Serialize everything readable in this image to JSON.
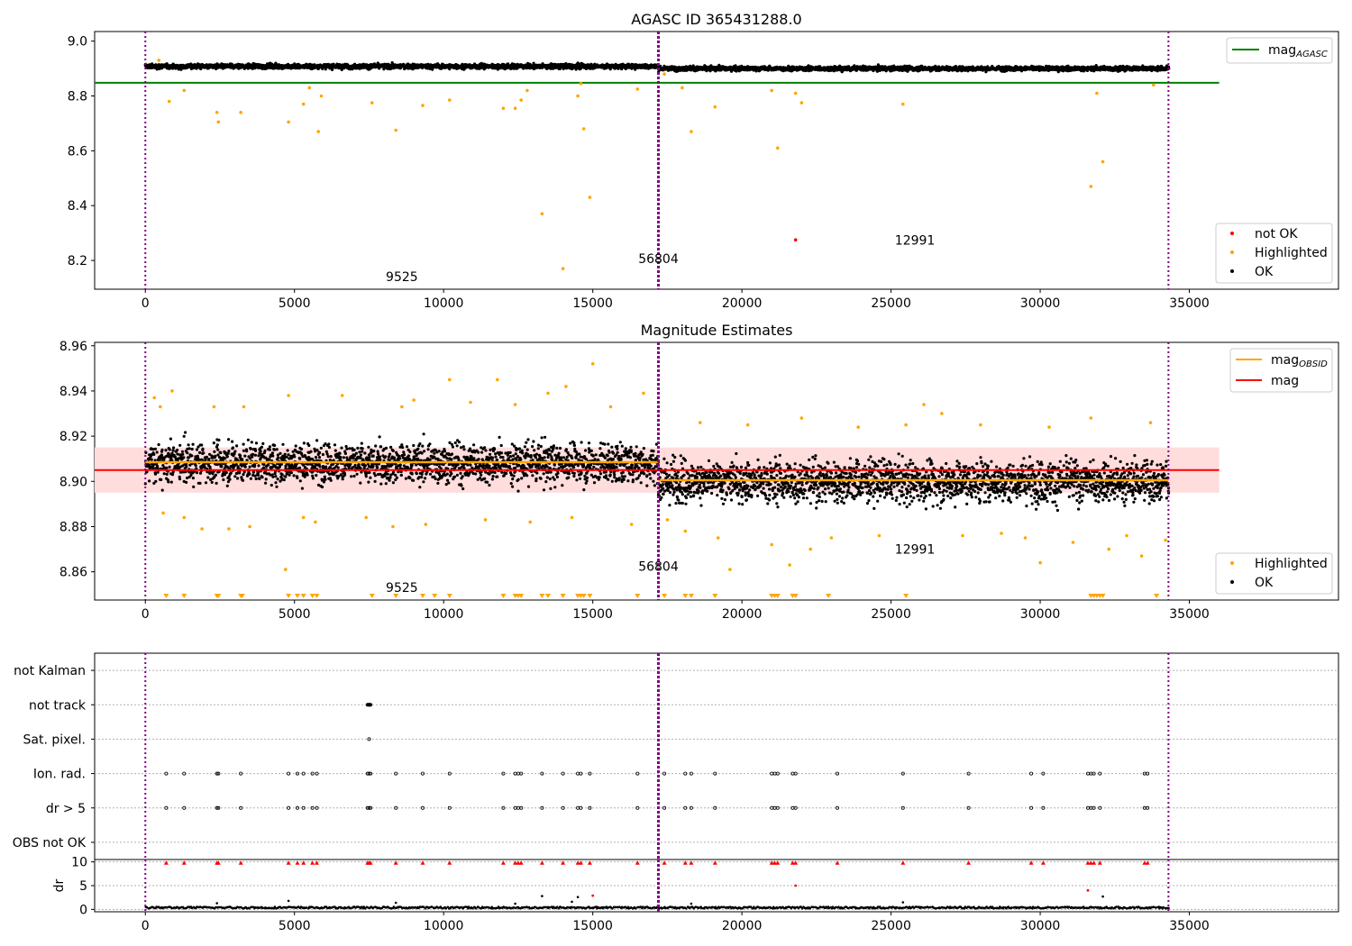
{
  "chart_data": [
    {
      "type": "scatter",
      "title": "AGASC ID 365431288.0",
      "xlim": [
        -1700,
        40000
      ],
      "ylim": [
        8.095,
        9.035
      ],
      "xticks": [
        0,
        5000,
        10000,
        15000,
        20000,
        25000,
        30000,
        35000
      ],
      "yticks": [
        8.2,
        8.4,
        8.6,
        8.8,
        9.0
      ],
      "ytick_labels": [
        "8.2",
        "8.4",
        "8.6",
        "8.8",
        "9.0"
      ],
      "legend_upper": {
        "position": "upper right",
        "entries": [
          {
            "label": "mag",
            "sub": "AGASC",
            "color": "#008000"
          }
        ]
      },
      "legend_lower": {
        "position": "lower right",
        "entries": [
          {
            "label": "not OK",
            "color": "#ff0000"
          },
          {
            "label": "Highlighted",
            "color": "#ffa500"
          },
          {
            "label": "OK",
            "color": "#000000"
          }
        ]
      },
      "series": [
        {
          "name": "OK",
          "color": "#000000",
          "segments": [
            {
              "x0": 0,
              "x1": 17200,
              "center": 8.908,
              "spread": 0.018
            },
            {
              "x0": 17200,
              "x1": 34300,
              "center": 8.9,
              "spread": 0.017
            }
          ]
        },
        {
          "name": "Highlighted",
          "color": "#ffa500",
          "points": [
            [
              450,
              8.93
            ],
            [
              800,
              8.78
            ],
            [
              1300,
              8.82
            ],
            [
              2400,
              8.74
            ],
            [
              2450,
              8.705
            ],
            [
              3200,
              8.74
            ],
            [
              4800,
              8.705
            ],
            [
              5300,
              8.77
            ],
            [
              5500,
              8.83
            ],
            [
              5800,
              8.67
            ],
            [
              5900,
              8.8
            ],
            [
              7600,
              8.775
            ],
            [
              8400,
              8.675
            ],
            [
              9300,
              8.765
            ],
            [
              10200,
              8.785
            ],
            [
              12000,
              8.755
            ],
            [
              12400,
              8.755
            ],
            [
              12600,
              8.785
            ],
            [
              12800,
              8.82
            ],
            [
              13300,
              8.37
            ],
            [
              14000,
              8.17
            ],
            [
              14500,
              8.8
            ],
            [
              14600,
              8.845
            ],
            [
              14700,
              8.68
            ],
            [
              14900,
              8.43
            ],
            [
              16500,
              8.825
            ],
            [
              17400,
              8.88
            ],
            [
              18000,
              8.83
            ],
            [
              18300,
              8.67
            ],
            [
              19100,
              8.76
            ],
            [
              21000,
              8.82
            ],
            [
              21200,
              8.61
            ],
            [
              21800,
              8.81
            ],
            [
              22000,
              8.775
            ],
            [
              25400,
              8.77
            ],
            [
              31700,
              8.47
            ],
            [
              31900,
              8.81
            ],
            [
              32100,
              8.56
            ],
            [
              33800,
              8.84
            ]
          ]
        },
        {
          "name": "not OK",
          "color": "#ff0000",
          "points": [
            [
              21800,
              8.275
            ]
          ]
        }
      ],
      "hlines": [
        {
          "name": "mag_AGASC",
          "y": 8.848,
          "color": "#008000",
          "x0": -1700,
          "x1": 36000
        }
      ],
      "vlines": [
        {
          "x": 0,
          "style": "dotted",
          "color": "#800080"
        },
        {
          "x": 17200,
          "style": "dashed-thick",
          "color": "#800080"
        },
        {
          "x": 34300,
          "style": "dotted",
          "color": "#800080"
        }
      ],
      "annotations": [
        {
          "text": "9525",
          "x": 8600,
          "y": 8.125
        },
        {
          "text": "56804",
          "x": 17200,
          "y": 8.19
        },
        {
          "text": "12991",
          "x": 25800,
          "y": 8.258
        }
      ]
    },
    {
      "type": "scatter",
      "title": "Magnitude Estimates",
      "xlim": [
        -1700,
        40000
      ],
      "ylim": [
        8.8475,
        8.9615
      ],
      "xticks": [
        0,
        5000,
        10000,
        15000,
        20000,
        25000,
        30000,
        35000
      ],
      "yticks": [
        8.86,
        8.88,
        8.9,
        8.92,
        8.94,
        8.96
      ],
      "ytick_labels": [
        "8.86",
        "8.88",
        "8.90",
        "8.92",
        "8.94",
        "8.96"
      ],
      "legend_upper": {
        "position": "upper right",
        "entries": [
          {
            "label": "mag",
            "sub": "OBSID",
            "color": "#ffa500"
          },
          {
            "label": "mag",
            "sub": "",
            "color": "#ff0000"
          }
        ]
      },
      "legend_lower": {
        "position": "lower right",
        "entries": [
          {
            "label": "Highlighted",
            "color": "#ffa500"
          },
          {
            "label": "OK",
            "color": "#000000"
          }
        ]
      },
      "band": {
        "y0": 8.895,
        "y1": 8.915,
        "color": "#ffdddd",
        "x0": -1700,
        "x1": 36000
      },
      "hlines": [
        {
          "name": "mag",
          "y": 8.905,
          "color": "#ff0000",
          "x0": -1700,
          "x1": 36000
        }
      ],
      "obsid_lines": [
        {
          "x0": 0,
          "x1": 17200,
          "y": 8.9085,
          "color": "#ffa500"
        },
        {
          "x0": 17200,
          "x1": 34300,
          "y": 8.9005,
          "color": "#ffa500"
        }
      ],
      "series": [
        {
          "name": "OK",
          "color": "#000000",
          "segments": [
            {
              "x0": 0,
              "x1": 17200,
              "center": 8.908,
              "spread": 0.015
            },
            {
              "x0": 17200,
              "x1": 34300,
              "center": 8.9,
              "spread": 0.016
            }
          ]
        },
        {
          "name": "Highlighted",
          "color": "#ffa500",
          "points": [
            [
              300,
              8.937
            ],
            [
              500,
              8.933
            ],
            [
              600,
              8.886
            ],
            [
              900,
              8.94
            ],
            [
              1300,
              8.884
            ],
            [
              1900,
              8.879
            ],
            [
              2300,
              8.933
            ],
            [
              2800,
              8.879
            ],
            [
              3300,
              8.933
            ],
            [
              3500,
              8.88
            ],
            [
              4700,
              8.861
            ],
            [
              4800,
              8.938
            ],
            [
              5300,
              8.884
            ],
            [
              5700,
              8.882
            ],
            [
              6600,
              8.938
            ],
            [
              7400,
              8.884
            ],
            [
              8300,
              8.88
            ],
            [
              8600,
              8.933
            ],
            [
              9000,
              8.936
            ],
            [
              9400,
              8.881
            ],
            [
              10200,
              8.945
            ],
            [
              10900,
              8.935
            ],
            [
              11400,
              8.883
            ],
            [
              11800,
              8.945
            ],
            [
              12400,
              8.934
            ],
            [
              12900,
              8.882
            ],
            [
              13500,
              8.939
            ],
            [
              14100,
              8.942
            ],
            [
              14300,
              8.884
            ],
            [
              15000,
              8.952
            ],
            [
              15600,
              8.933
            ],
            [
              16300,
              8.881
            ],
            [
              16700,
              8.939
            ],
            [
              17500,
              8.883
            ],
            [
              18100,
              8.878
            ],
            [
              18600,
              8.926
            ],
            [
              19200,
              8.875
            ],
            [
              19600,
              8.861
            ],
            [
              20200,
              8.925
            ],
            [
              21000,
              8.872
            ],
            [
              21600,
              8.863
            ],
            [
              22000,
              8.928
            ],
            [
              22300,
              8.87
            ],
            [
              23000,
              8.875
            ],
            [
              23900,
              8.924
            ],
            [
              24600,
              8.876
            ],
            [
              25500,
              8.925
            ],
            [
              26100,
              8.934
            ],
            [
              26700,
              8.93
            ],
            [
              27400,
              8.876
            ],
            [
              28000,
              8.925
            ],
            [
              28700,
              8.877
            ],
            [
              29500,
              8.875
            ],
            [
              30000,
              8.864
            ],
            [
              30300,
              8.924
            ],
            [
              31100,
              8.873
            ],
            [
              31700,
              8.928
            ],
            [
              32300,
              8.87
            ],
            [
              32900,
              8.876
            ],
            [
              33400,
              8.867
            ],
            [
              33700,
              8.926
            ],
            [
              34200,
              8.874
            ]
          ]
        }
      ],
      "clipped_markers_x": [
        700,
        1300,
        2400,
        2450,
        3200,
        3250,
        4800,
        5100,
        5300,
        5600,
        5750,
        7600,
        8400,
        9300,
        9700,
        10200,
        12000,
        12400,
        12500,
        12600,
        13300,
        13500,
        14000,
        14500,
        14600,
        14700,
        14900,
        16500,
        17400,
        18100,
        18300,
        19100,
        21000,
        21100,
        21200,
        21700,
        21800,
        22900,
        25500,
        31700,
        31800,
        31900,
        32000,
        32100,
        33900
      ],
      "vlines": [
        {
          "x": 0,
          "style": "dotted",
          "color": "#800080"
        },
        {
          "x": 17200,
          "style": "dashed-thick",
          "color": "#800080"
        },
        {
          "x": 34300,
          "style": "dotted",
          "color": "#800080"
        }
      ],
      "annotations": [
        {
          "text": "9525",
          "x": 8600,
          "y": 8.851
        },
        {
          "text": "56804",
          "x": 17200,
          "y": 8.8605
        },
        {
          "text": "12991",
          "x": 25800,
          "y": 8.868
        }
      ]
    },
    {
      "type": "scatter",
      "title": "",
      "xlim": [
        -1700,
        40000
      ],
      "categories": [
        "OBS not OK",
        "dr > 5",
        "Ion. rad.",
        "Sat. pixel.",
        "not track",
        "not Kalman"
      ],
      "ylim": [
        -0.5,
        5.5
      ],
      "flag_x": [
        700,
        1300,
        2400,
        2450,
        3200,
        4800,
        5100,
        5300,
        5600,
        5750,
        7450,
        7500,
        7550,
        8400,
        9300,
        10200,
        12000,
        12400,
        12500,
        12600,
        13300,
        14000,
        14500,
        14600,
        14900,
        16500,
        17400,
        18100,
        18300,
        19100,
        21000,
        21100,
        21200,
        21700,
        21800,
        23200,
        25400,
        27600,
        29700,
        30100,
        31600,
        31700,
        31800,
        32000,
        33500,
        33600
      ],
      "flags": {
        "dr > 5": "all",
        "Ion. rad.": "all",
        "Sat. pixel.": [
          7500
        ],
        "not track": [
          7450,
          7480,
          7500,
          7520,
          7550
        ]
      },
      "vlines": [
        {
          "x": 0,
          "style": "dotted",
          "color": "#800080"
        },
        {
          "x": 17200,
          "style": "dashed-thick",
          "color": "#800080"
        },
        {
          "x": 34300,
          "style": "dotted",
          "color": "#800080"
        }
      ]
    },
    {
      "type": "scatter",
      "title": "",
      "ylabel": "dr",
      "xlim": [
        -1700,
        40000
      ],
      "ylim": [
        -0.5,
        10.5
      ],
      "xticks": [
        0,
        5000,
        10000,
        15000,
        20000,
        25000,
        30000,
        35000
      ],
      "yticks": [
        0,
        5,
        10
      ],
      "ytick_labels": [
        "0",
        "5",
        "10"
      ],
      "series": [
        {
          "name": "dr",
          "color": "#000000",
          "baseline": 0.2
        },
        {
          "name": "dr outliers",
          "color": "#ff0000",
          "points": [
            [
              15000,
              2.9
            ],
            [
              21800,
              5.0
            ],
            [
              31600,
              4.0
            ]
          ]
        },
        {
          "name": "dr capped",
          "color": "#ff0000",
          "marker": "triangle-up",
          "y": 9.8
        }
      ],
      "black_outliers": [
        [
          2400,
          1.3
        ],
        [
          4800,
          1.8
        ],
        [
          8400,
          1.4
        ],
        [
          12400,
          1.2
        ],
        [
          13300,
          2.8
        ],
        [
          14300,
          1.6
        ],
        [
          14500,
          2.6
        ],
        [
          18300,
          1.2
        ],
        [
          25400,
          1.5
        ],
        [
          32100,
          2.7
        ]
      ],
      "vlines": [
        {
          "x": 0,
          "style": "dotted",
          "color": "#800080"
        },
        {
          "x": 17200,
          "style": "dashed-thick",
          "color": "#800080"
        },
        {
          "x": 34300,
          "style": "dotted",
          "color": "#800080"
        }
      ]
    }
  ]
}
